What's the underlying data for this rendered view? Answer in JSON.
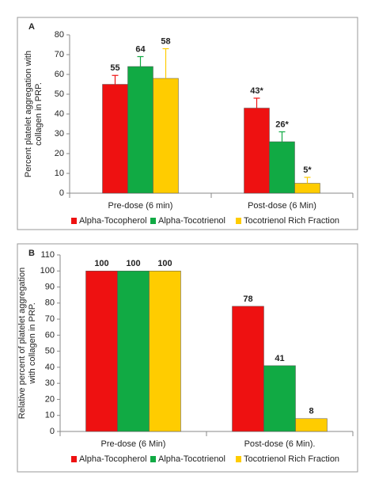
{
  "chart_data": [
    {
      "type": "bar",
      "panel_label": "A",
      "ylabel": [
        "Percent platelet aggregation with",
        "collagen in PRP."
      ],
      "categories": [
        "Pre-dose (6 min)",
        "Post-dose (6 Min)"
      ],
      "series": [
        {
          "name": "Alpha-Tocopherol",
          "color": "#ee1111",
          "values": [
            55,
            43
          ],
          "value_labels": [
            "55",
            "43*"
          ],
          "errors": [
            4.5,
            5
          ]
        },
        {
          "name": "Alpha-Tocotrienol",
          "color": "#11aa44",
          "values": [
            64,
            26
          ],
          "value_labels": [
            "64",
            "26*"
          ],
          "errors": [
            5,
            5
          ]
        },
        {
          "name": "Tocotrienol Rich Fraction",
          "color": "#ffcc00",
          "values": [
            58,
            5
          ],
          "value_labels": [
            "58",
            "5*"
          ],
          "errors": [
            15,
            3
          ]
        }
      ],
      "ylim": [
        0,
        80
      ],
      "yticks": [
        0,
        10,
        20,
        30,
        40,
        50,
        60,
        70,
        80
      ]
    },
    {
      "type": "bar",
      "panel_label": "B",
      "ylabel": [
        "Relative percent of platelet aggregation",
        "with collagen in PRP."
      ],
      "categories": [
        "Pre-dose (6 Min)",
        "Post-dose (6 Min)."
      ],
      "series": [
        {
          "name": "Alpha-Tocopherol",
          "color": "#ee1111",
          "values": [
            100,
            78
          ]
        },
        {
          "name": "Alpha-Tocotrienol",
          "color": "#11aa44",
          "values": [
            100,
            41
          ]
        },
        {
          "name": "Tocotrienol Rich Fraction",
          "color": "#ffcc00",
          "values": [
            100,
            8
          ]
        }
      ],
      "ylim": [
        0,
        110
      ],
      "yticks": [
        0,
        10,
        20,
        30,
        40,
        50,
        60,
        70,
        80,
        90,
        100,
        110
      ]
    }
  ]
}
